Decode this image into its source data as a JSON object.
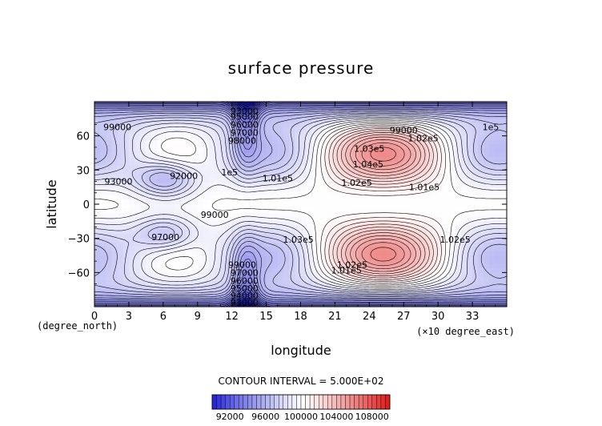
{
  "chart_data": {
    "type": "heatmap",
    "title": "surface pressure",
    "xlabel": "longitude",
    "ylabel": "latitude",
    "x_unit_note": "(degree_north)",
    "x_scale_note": "(×10 degree_east)",
    "xlim": [
      0,
      36
    ],
    "ylim": [
      -90,
      90
    ],
    "x_ticks": [
      0,
      3,
      6,
      9,
      12,
      15,
      18,
      21,
      24,
      27,
      30,
      33
    ],
    "y_ticks": [
      60,
      30,
      0,
      -30,
      -60
    ],
    "y_tick_labels": [
      "60",
      "30",
      "0",
      "−30",
      "−60"
    ],
    "contour_interval_text": "CONTOUR INTERVAL = 5.000E+02",
    "colorbar": {
      "range": [
        90000,
        110000
      ],
      "tick_labels": [
        "92000",
        "96000",
        "100000",
        "104000",
        "108000"
      ],
      "low_color": "#1a1ad8",
      "mid_color": "#ffffff",
      "high_color": "#e01818"
    },
    "contour_labels": [
      {
        "text": "93000",
        "x": 13.1,
        "y": 82
      },
      {
        "text": "95000",
        "x": 13.1,
        "y": 77
      },
      {
        "text": "96000",
        "x": 13.1,
        "y": 70
      },
      {
        "text": "97000",
        "x": 13.1,
        "y": 63
      },
      {
        "text": "98000",
        "x": 12.9,
        "y": 56
      },
      {
        "text": "99000",
        "x": 2.0,
        "y": 68
      },
      {
        "text": "99000",
        "x": 27.0,
        "y": 65
      },
      {
        "text": "1.02e5",
        "x": 28.7,
        "y": 58
      },
      {
        "text": "1e5",
        "x": 34.6,
        "y": 68
      },
      {
        "text": "1.03e5",
        "x": 24.0,
        "y": 49
      },
      {
        "text": "1.04e5",
        "x": 23.9,
        "y": 35
      },
      {
        "text": "1.02e5",
        "x": 22.9,
        "y": 19
      },
      {
        "text": "1.01e5",
        "x": 28.8,
        "y": 15
      },
      {
        "text": "1.01e5",
        "x": 16.0,
        "y": 23
      },
      {
        "text": "1e5",
        "x": 11.8,
        "y": 28
      },
      {
        "text": "92000",
        "x": 7.8,
        "y": 25
      },
      {
        "text": "93000",
        "x": 2.1,
        "y": 20
      },
      {
        "text": "99000",
        "x": 10.5,
        "y": -9
      },
      {
        "text": "97000",
        "x": 6.2,
        "y": -29
      },
      {
        "text": "1.03e5",
        "x": 17.8,
        "y": -31
      },
      {
        "text": "1.02e5",
        "x": 31.5,
        "y": -31
      },
      {
        "text": "1.02e5",
        "x": 22.5,
        "y": -53
      },
      {
        "text": "1.01e5",
        "x": 22.0,
        "y": -58
      },
      {
        "text": "99000",
        "x": 12.9,
        "y": -53
      },
      {
        "text": "97000",
        "x": 13.1,
        "y": -60
      },
      {
        "text": "96000",
        "x": 13.1,
        "y": -67
      },
      {
        "text": "95000",
        "x": 13.1,
        "y": -74
      },
      {
        "text": "94000",
        "x": 13.1,
        "y": -80
      },
      {
        "text": "93000",
        "x": 13.1,
        "y": -86
      }
    ]
  }
}
